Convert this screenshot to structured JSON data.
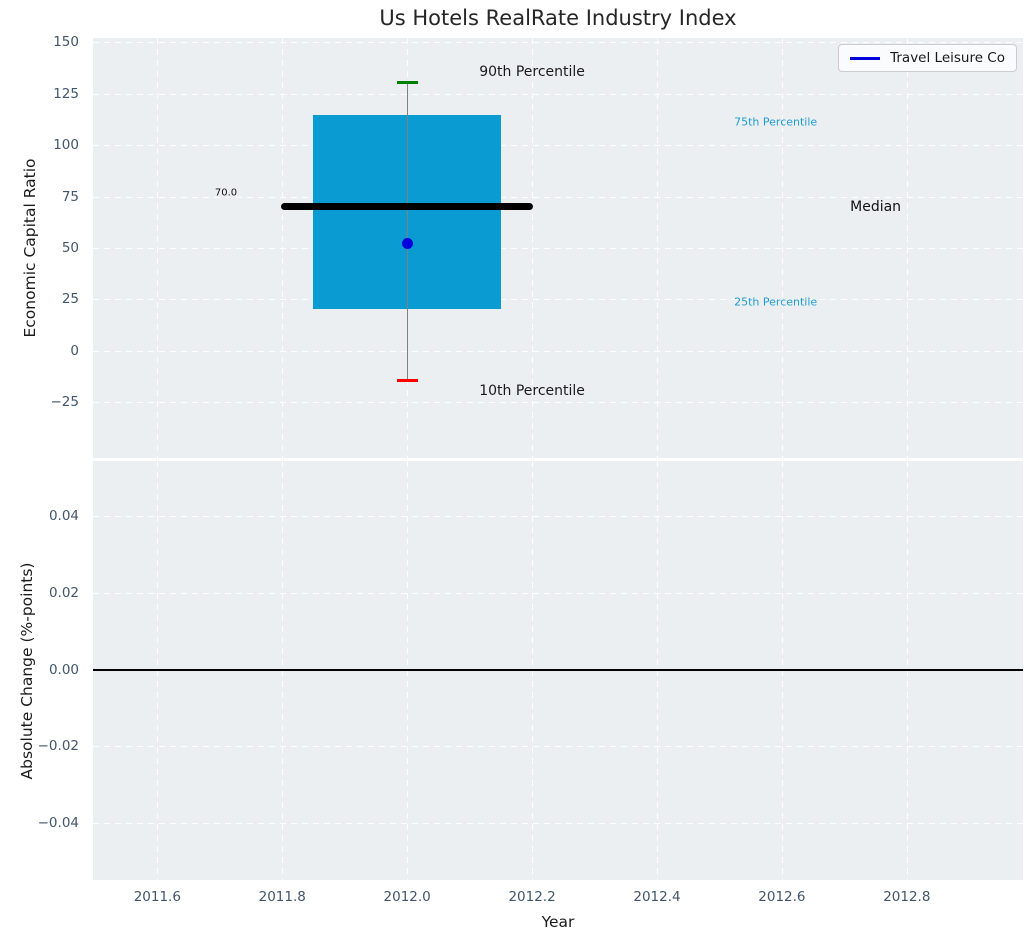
{
  "figure": {
    "title": "Us Hotels RealRate Industry Index",
    "background": "#ffffff",
    "plot_background": "#eceff1",
    "grid_color": "#ffffff",
    "tick_color": "#42566b"
  },
  "legend": {
    "label": "Travel Leisure Co",
    "line_color": "#0000dc",
    "location": "upper right"
  },
  "chart_data": [
    {
      "type": "boxplot",
      "title": "Us Hotels RealRate Industry Index",
      "xlabel": "Year",
      "ylabel": "Economic Capital Ratio",
      "xlim": [
        2011.497,
        2012.986
      ],
      "ylim": [
        -52,
        152
      ],
      "grid": true,
      "x_ticks": [
        2011.6,
        2011.8,
        2012.0,
        2012.2,
        2012.4,
        2012.6,
        2012.8
      ],
      "x_tick_labels": [
        "2011.6",
        "2011.8",
        "2012.0",
        "2012.2",
        "2012.4",
        "2012.6",
        "2012.8"
      ],
      "y_ticks": [
        150,
        125,
        100,
        75,
        50,
        25,
        0,
        -25
      ],
      "y_tick_labels": [
        "150",
        "125",
        "100",
        "75",
        "50",
        "25",
        "0",
        "−25"
      ],
      "series": [
        {
          "name": "Industry percentile box (2012)",
          "x": 2012.0,
          "p10": -14.5,
          "p25": 20.5,
          "median": 70.0,
          "p75": 114.5,
          "p90": 130.5,
          "box_half_width": 0.151,
          "median_half_width": 0.202,
          "cap_half_width": 0.017,
          "box_color": "#099bd2",
          "median_color": "#000000",
          "whisker_color": "#808080",
          "p90_cap_color": "#008000",
          "p10_cap_color": "#ff0000"
        },
        {
          "name": "Travel Leisure Co",
          "marker": "circle",
          "color": "#0000dc",
          "points": [
            {
              "x": 2012.0,
              "y": 52.0
            }
          ]
        }
      ],
      "annotations": [
        {
          "text": "90th Percentile",
          "x": 2012.2,
          "y": 135.5,
          "color": "#1a1a1a",
          "size": 14
        },
        {
          "text": "75th Percentile",
          "x": 2012.59,
          "y": 111.0,
          "color": "#1e9cd0",
          "size": 11
        },
        {
          "text": "Median",
          "x": 2012.75,
          "y": 70.0,
          "color": "#111111",
          "size": 14
        },
        {
          "text": "25th Percentile",
          "x": 2012.59,
          "y": 24.0,
          "color": "#1e9cd0",
          "size": 11
        },
        {
          "text": "10th Percentile",
          "x": 2012.2,
          "y": -19.5,
          "color": "#1a1a1a",
          "size": 14
        },
        {
          "text": "70.0",
          "x": 2011.71,
          "y": 76.5,
          "color": "#111111",
          "size": 10
        }
      ]
    },
    {
      "type": "line",
      "xlabel": "Year",
      "ylabel": "Absolute Change (%-points)",
      "xlim": [
        2011.497,
        2012.986
      ],
      "ylim": [
        -0.055,
        0.0545
      ],
      "grid": true,
      "y_ticks": [
        0.04,
        0.02,
        0.0,
        -0.02,
        -0.04
      ],
      "y_tick_labels": [
        "0.04",
        "0.02",
        "0.00",
        "−0.02",
        "−0.04"
      ],
      "zero_line": {
        "y": 0.0,
        "color": "#000000"
      },
      "series": []
    }
  ]
}
